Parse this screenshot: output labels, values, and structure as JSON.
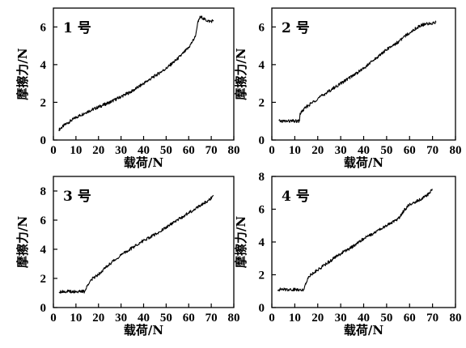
{
  "chart_data": [
    {
      "type": "line",
      "title": "1 号",
      "xlabel": "载荷/N",
      "ylabel": "摩擦力/N",
      "xlim": [
        0,
        80
      ],
      "ylim": [
        0,
        7
      ],
      "xticks": [
        0,
        10,
        20,
        30,
        40,
        50,
        60,
        70,
        80
      ],
      "yticks": [
        0,
        2,
        4,
        6
      ],
      "grid": false,
      "series": [
        {
          "x": [
            2.5,
            5,
            10,
            15,
            20,
            25,
            30,
            35,
            40,
            45,
            50,
            55,
            60,
            62,
            63,
            64,
            65,
            66,
            67,
            68,
            69,
            70,
            71
          ],
          "values": [
            0.55,
            0.8,
            1.2,
            1.5,
            1.75,
            2.0,
            2.3,
            2.6,
            3.0,
            3.4,
            3.8,
            4.3,
            4.9,
            5.3,
            5.5,
            6.2,
            6.5,
            6.5,
            6.4,
            6.35,
            6.3,
            6.3,
            6.35
          ]
        }
      ]
    },
    {
      "type": "line",
      "title": "2 号",
      "xlabel": "载荷/N",
      "ylabel": "摩擦力/N",
      "xlim": [
        0,
        80
      ],
      "ylim": [
        0,
        7
      ],
      "xticks": [
        0,
        10,
        20,
        30,
        40,
        50,
        60,
        70,
        80
      ],
      "yticks": [
        0,
        2,
        4,
        6
      ],
      "grid": false,
      "series": [
        {
          "x": [
            3,
            5,
            8,
            10,
            12,
            12.3,
            13,
            15,
            20,
            25,
            30,
            35,
            40,
            45,
            50,
            55,
            60,
            65,
            70,
            71.5
          ],
          "values": [
            1.0,
            1.0,
            1.0,
            1.0,
            1.0,
            1.4,
            1.5,
            1.75,
            2.2,
            2.6,
            3.0,
            3.4,
            3.8,
            4.3,
            4.8,
            5.2,
            5.7,
            6.1,
            6.2,
            6.25
          ]
        }
      ]
    },
    {
      "type": "line",
      "title": "3 号",
      "xlabel": "载荷/N",
      "ylabel": "摩擦力/N",
      "xlim": [
        0,
        80
      ],
      "ylim": [
        0,
        9
      ],
      "xticks": [
        0,
        10,
        20,
        30,
        40,
        50,
        60,
        70,
        80
      ],
      "yticks": [
        0,
        2,
        4,
        6,
        8
      ],
      "grid": false,
      "series": [
        {
          "x": [
            2.5,
            5,
            8,
            12,
            14,
            14.5,
            16,
            20,
            25,
            30,
            35,
            40,
            45,
            50,
            55,
            60,
            65,
            70,
            71
          ],
          "values": [
            1.1,
            1.1,
            1.1,
            1.1,
            1.1,
            1.3,
            1.8,
            2.3,
            3.0,
            3.6,
            4.1,
            4.6,
            5.0,
            5.5,
            6.0,
            6.5,
            7.0,
            7.5,
            7.7
          ]
        }
      ]
    },
    {
      "type": "line",
      "title": "4 号",
      "xlabel": "载荷/N",
      "ylabel": "摩擦力/N",
      "xlim": [
        0,
        80
      ],
      "ylim": [
        0,
        8
      ],
      "xticks": [
        0,
        10,
        20,
        30,
        40,
        50,
        60,
        70,
        80
      ],
      "yticks": [
        0,
        2,
        4,
        6,
        8
      ],
      "grid": false,
      "series": [
        {
          "x": [
            2.5,
            5,
            8,
            12,
            14,
            14.5,
            16,
            20,
            25,
            30,
            35,
            40,
            45,
            50,
            55,
            58,
            60,
            65,
            68,
            70
          ],
          "values": [
            1.1,
            1.1,
            1.1,
            1.1,
            1.1,
            1.4,
            1.9,
            2.3,
            2.8,
            3.3,
            3.7,
            4.2,
            4.6,
            5.0,
            5.4,
            6.0,
            6.3,
            6.6,
            6.9,
            7.2
          ]
        }
      ]
    }
  ]
}
